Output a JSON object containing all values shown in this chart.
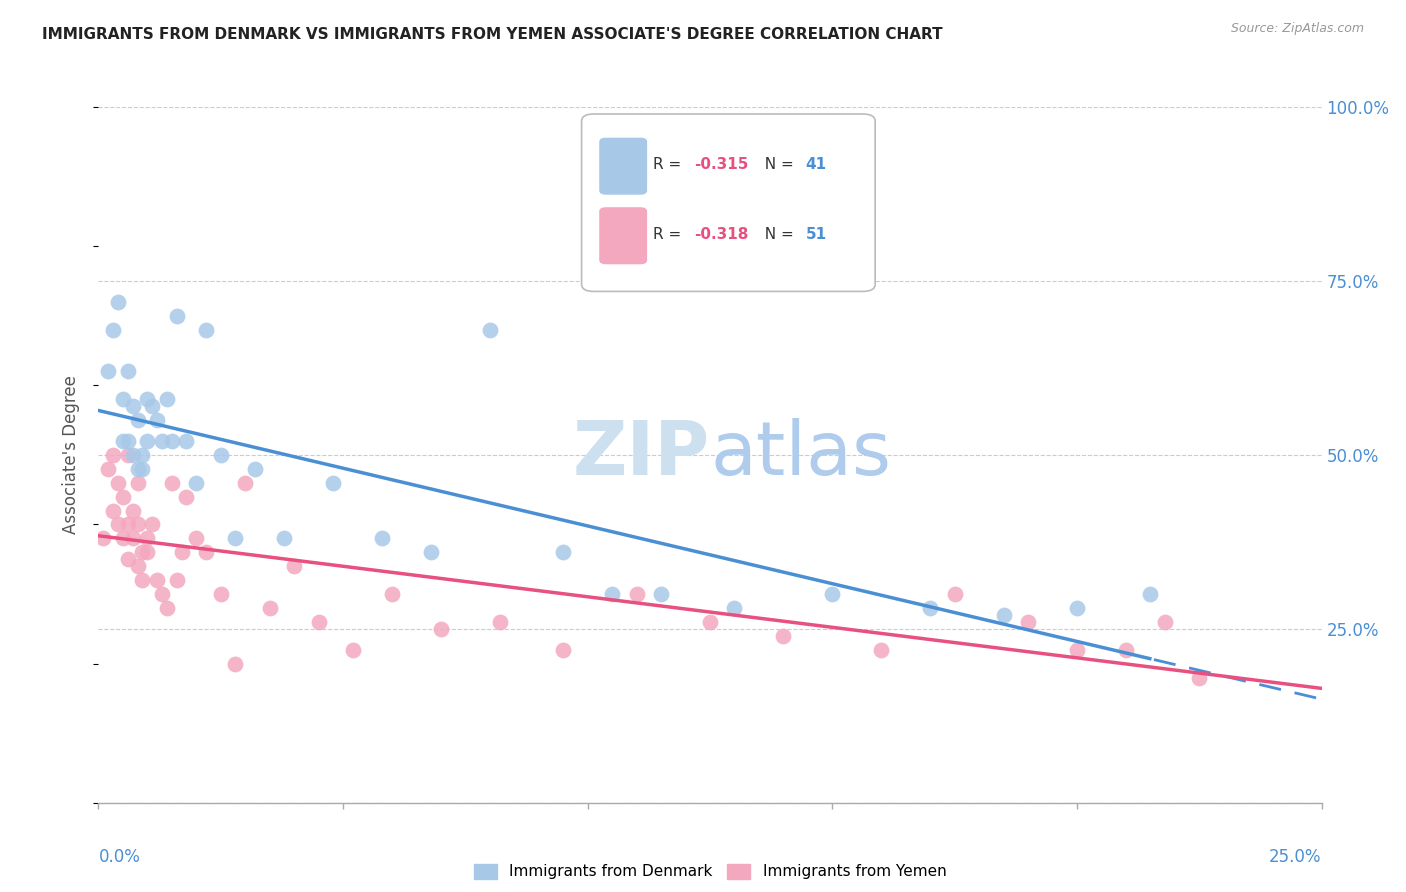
{
  "title": "IMMIGRANTS FROM DENMARK VS IMMIGRANTS FROM YEMEN ASSOCIATE'S DEGREE CORRELATION CHART",
  "source": "Source: ZipAtlas.com",
  "ylabel": "Associate's Degree",
  "xmin": 0.0,
  "xmax": 0.25,
  "ymin": 0.0,
  "ymax": 1.0,
  "yticks": [
    0.0,
    0.25,
    0.5,
    0.75,
    1.0
  ],
  "ytick_labels": [
    "",
    "25.0%",
    "50.0%",
    "75.0%",
    "100.0%"
  ],
  "xticks": [
    0.0,
    0.05,
    0.1,
    0.15,
    0.2,
    0.25
  ],
  "denmark_R": -0.315,
  "denmark_N": 41,
  "yemen_R": -0.318,
  "yemen_N": 51,
  "denmark_scatter_color": "#a8c8e8",
  "yemen_scatter_color": "#f4a8c0",
  "denmark_line_color": "#4a8fd4",
  "yemen_line_color": "#e85080",
  "watermark_color": "#d8eaf8",
  "denmark_scatter_x": [
    0.002,
    0.003,
    0.004,
    0.005,
    0.005,
    0.006,
    0.006,
    0.007,
    0.007,
    0.008,
    0.008,
    0.009,
    0.009,
    0.01,
    0.01,
    0.011,
    0.012,
    0.013,
    0.014,
    0.015,
    0.016,
    0.018,
    0.02,
    0.022,
    0.025,
    0.028,
    0.032,
    0.038,
    0.048,
    0.058,
    0.068,
    0.08,
    0.095,
    0.105,
    0.115,
    0.13,
    0.15,
    0.17,
    0.185,
    0.2,
    0.215
  ],
  "denmark_scatter_y": [
    0.62,
    0.68,
    0.72,
    0.52,
    0.58,
    0.52,
    0.62,
    0.5,
    0.57,
    0.48,
    0.55,
    0.48,
    0.5,
    0.52,
    0.58,
    0.57,
    0.55,
    0.52,
    0.58,
    0.52,
    0.7,
    0.52,
    0.46,
    0.68,
    0.5,
    0.38,
    0.48,
    0.38,
    0.46,
    0.38,
    0.36,
    0.68,
    0.36,
    0.3,
    0.3,
    0.28,
    0.3,
    0.28,
    0.27,
    0.28,
    0.3
  ],
  "yemen_scatter_x": [
    0.001,
    0.002,
    0.003,
    0.003,
    0.004,
    0.004,
    0.005,
    0.005,
    0.006,
    0.006,
    0.006,
    0.007,
    0.007,
    0.008,
    0.008,
    0.008,
    0.009,
    0.009,
    0.01,
    0.01,
    0.011,
    0.012,
    0.013,
    0.014,
    0.015,
    0.016,
    0.017,
    0.018,
    0.02,
    0.022,
    0.025,
    0.028,
    0.03,
    0.035,
    0.04,
    0.045,
    0.052,
    0.06,
    0.07,
    0.082,
    0.095,
    0.11,
    0.125,
    0.14,
    0.16,
    0.175,
    0.19,
    0.2,
    0.21,
    0.218,
    0.225
  ],
  "yemen_scatter_y": [
    0.38,
    0.48,
    0.42,
    0.5,
    0.4,
    0.46,
    0.38,
    0.44,
    0.35,
    0.4,
    0.5,
    0.42,
    0.38,
    0.4,
    0.34,
    0.46,
    0.36,
    0.32,
    0.38,
    0.36,
    0.4,
    0.32,
    0.3,
    0.28,
    0.46,
    0.32,
    0.36,
    0.44,
    0.38,
    0.36,
    0.3,
    0.2,
    0.46,
    0.28,
    0.34,
    0.26,
    0.22,
    0.3,
    0.25,
    0.26,
    0.22,
    0.3,
    0.26,
    0.24,
    0.22,
    0.3,
    0.26,
    0.22,
    0.22,
    0.26,
    0.18
  ]
}
